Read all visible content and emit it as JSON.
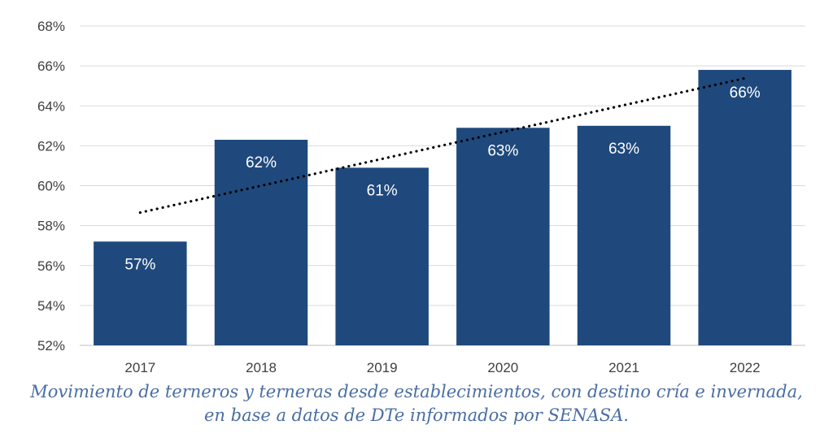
{
  "chart_data": {
    "type": "bar",
    "categories": [
      "2017",
      "2018",
      "2019",
      "2020",
      "2021",
      "2022"
    ],
    "values": [
      57.2,
      62.3,
      60.9,
      62.9,
      63.0,
      65.8
    ],
    "data_labels": [
      "57%",
      "62%",
      "61%",
      "63%",
      "63%",
      "66%"
    ],
    "ylim": [
      52,
      68
    ],
    "yticks": [
      52,
      54,
      56,
      58,
      60,
      62,
      64,
      66,
      68
    ],
    "ytick_labels": [
      "52%",
      "54%",
      "56%",
      "58%",
      "60%",
      "62%",
      "64%",
      "66%",
      "68%"
    ],
    "trendline": {
      "type": "linear",
      "style": "dotted"
    },
    "grid": true,
    "bar_color": "#1f497d",
    "title": "",
    "xlabel": "",
    "ylabel": ""
  },
  "caption": {
    "line1": "Movimiento de terneros y terneras desde establecimientos, con destino cría e invernada,",
    "line2": "en base a datos de DTe informados por SENASA."
  }
}
